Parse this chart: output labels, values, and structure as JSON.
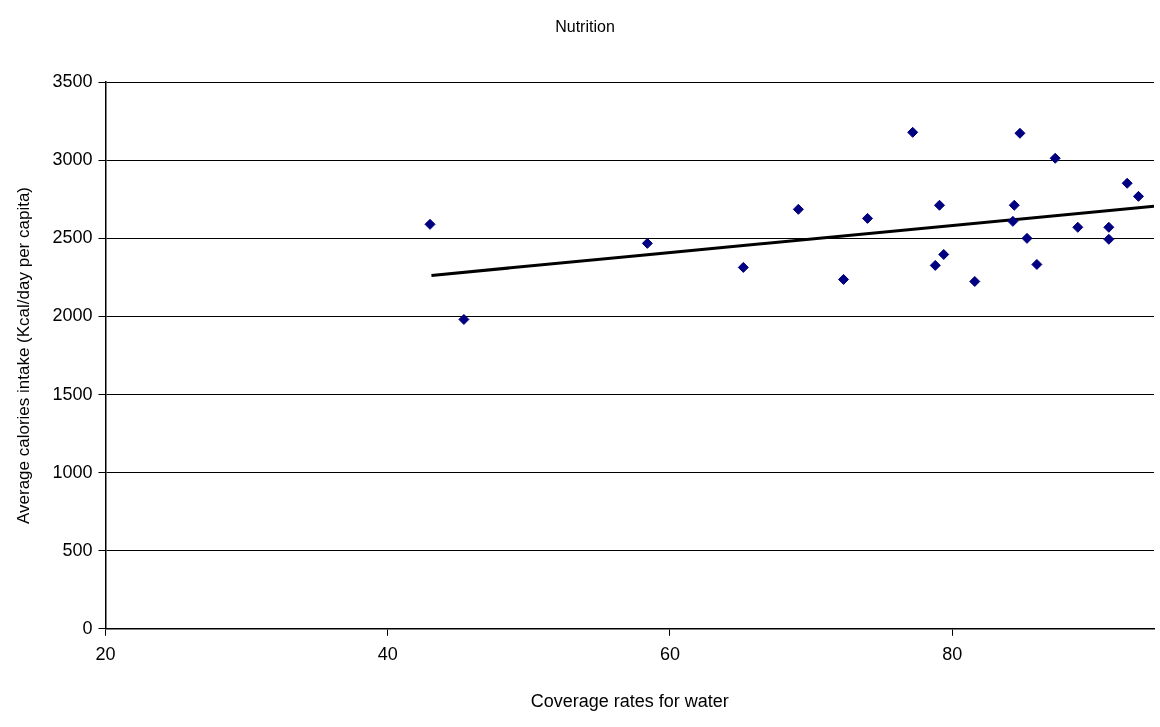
{
  "chart_data": {
    "type": "scatter",
    "title": "Nutrition",
    "xlabel": "Coverage rates for water",
    "ylabel": "Average calories intake (Kcal/day per capita)",
    "xlim": [
      20,
      94.3
    ],
    "xticks": [
      20,
      40,
      60,
      80
    ],
    "ylim": [
      0,
      3500
    ],
    "yticks": [
      0,
      500,
      1000,
      1500,
      2000,
      2500,
      3000,
      3500
    ],
    "grid": "y",
    "series": [
      {
        "marker": "diamond",
        "color": "#000080",
        "x": [
          43.0,
          45.4,
          58.4,
          65.2,
          69.1,
          72.3,
          74.0,
          77.2,
          79.1,
          78.8,
          79.4,
          81.6,
          84.8,
          84.4,
          84.3,
          85.3,
          86.0,
          87.3,
          88.9,
          91.1,
          91.1,
          92.4,
          93.2
        ],
        "values": [
          2590,
          1981,
          2468,
          2314,
          2686,
          2237,
          2628,
          3179,
          2712,
          2327,
          2397,
          2224,
          3173,
          2712,
          2609,
          2500,
          2333,
          3013,
          2571,
          2571,
          2494,
          2853,
          2769
        ]
      },
      {
        "type": "line",
        "marker": "none",
        "color": "#000000",
        "x": [
          43.1,
          94.3
        ],
        "values": [
          2263,
          2705
        ]
      }
    ]
  }
}
